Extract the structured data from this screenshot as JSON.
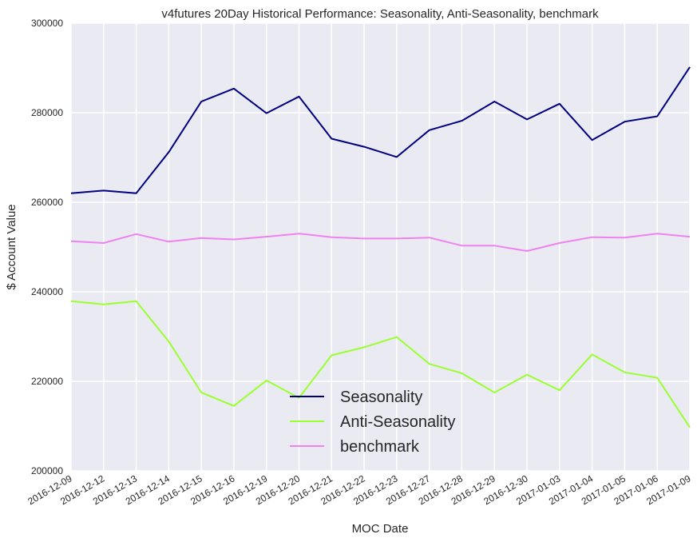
{
  "chart_data": {
    "type": "line",
    "title": "v4futures 20Day Historical Performance: Seasonality, Anti-Seasonality, benchmark",
    "xlabel": "MOC Date",
    "ylabel": "$ Account Value",
    "ylim": [
      200000,
      300000
    ],
    "yticks": [
      "200000",
      "220000",
      "240000",
      "260000",
      "280000",
      "300000"
    ],
    "categories": [
      "2016-12-09",
      "2016-12-12",
      "2016-12-13",
      "2016-12-14",
      "2016-12-15",
      "2016-12-16",
      "2016-12-19",
      "2016-12-20",
      "2016-12-21",
      "2016-12-22",
      "2016-12-23",
      "2016-12-27",
      "2016-12-28",
      "2016-12-29",
      "2016-12-30",
      "2017-01-03",
      "2017-01-04",
      "2017-01-05",
      "2017-01-06",
      "2017-01-09"
    ],
    "grid": true,
    "legend_position": "lower-center",
    "series": [
      {
        "name": "Seasonality",
        "color": "#000080",
        "values": [
          262000,
          262600,
          262000,
          271200,
          282500,
          285400,
          279900,
          283600,
          274200,
          272400,
          270100,
          276100,
          278200,
          282500,
          278500,
          282000,
          273900,
          278000,
          279200,
          290200
        ]
      },
      {
        "name": "Anti-Seasonality",
        "color": "#9aff2f",
        "values": [
          237900,
          237200,
          237900,
          228900,
          217500,
          214500,
          220200,
          216300,
          225800,
          227600,
          229900,
          223900,
          221800,
          217500,
          221500,
          218000,
          226000,
          222000,
          220800,
          209700
        ]
      },
      {
        "name": "benchmark",
        "color": "#ee82ee",
        "values": [
          251300,
          250900,
          252900,
          251200,
          252000,
          251700,
          252300,
          253000,
          252200,
          251900,
          251900,
          252100,
          250300,
          250300,
          249100,
          250900,
          252200,
          252100,
          253000,
          252300
        ]
      }
    ]
  }
}
